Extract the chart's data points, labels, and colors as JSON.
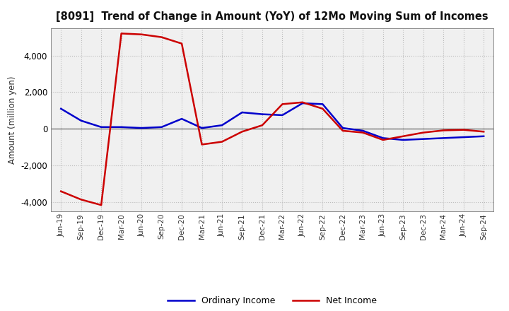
{
  "title": "[8091]  Trend of Change in Amount (YoY) of 12Mo Moving Sum of Incomes",
  "ylabel": "Amount (million yen)",
  "x_labels": [
    "Jun-19",
    "Sep-19",
    "Dec-19",
    "Mar-20",
    "Jun-20",
    "Sep-20",
    "Dec-20",
    "Mar-21",
    "Jun-21",
    "Sep-21",
    "Dec-21",
    "Mar-22",
    "Jun-22",
    "Sep-22",
    "Dec-22",
    "Mar-23",
    "Jun-23",
    "Sep-23",
    "Dec-23",
    "Mar-24",
    "Jun-24",
    "Sep-24"
  ],
  "ordinary_income": [
    1100,
    450,
    100,
    100,
    50,
    100,
    550,
    50,
    200,
    900,
    800,
    750,
    1400,
    1350,
    50,
    -100,
    -500,
    -600,
    -550,
    -500,
    -450,
    -400
  ],
  "net_income": [
    -3400,
    -3850,
    -4150,
    5200,
    5150,
    5000,
    4650,
    -850,
    -700,
    -150,
    200,
    1350,
    1450,
    1100,
    -100,
    -200,
    -600,
    -400,
    -200,
    -80,
    -50,
    -150
  ],
  "ordinary_income_color": "#0000cc",
  "net_income_color": "#cc0000",
  "ylim": [
    -4500,
    5500
  ],
  "yticks": [
    -4000,
    -2000,
    0,
    2000,
    4000
  ],
  "background_color": "#ffffff",
  "plot_bg_color": "#f0f0f0",
  "grid_color": "#bbbbbb",
  "line_width": 1.8,
  "legend_ordinary": "Ordinary Income",
  "legend_net": "Net Income"
}
